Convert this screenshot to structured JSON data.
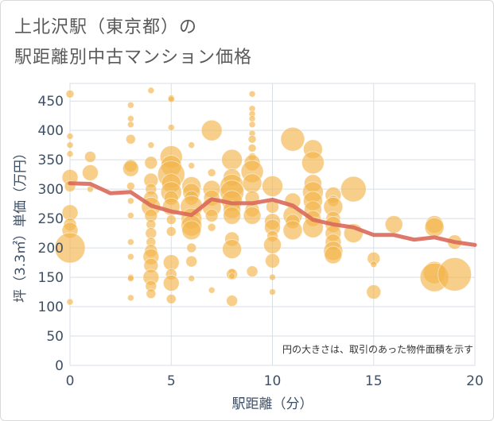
{
  "title_line1": "上北沢駅（東京都）の",
  "title_line2": "駅距離別中古マンション価格",
  "chart_data": {
    "type": "scatter",
    "xlabel": "駅距離（分）",
    "ylabel": "坪（3.3㎡）単価（万円）",
    "xlim": [
      0,
      20
    ],
    "ylim": [
      0,
      480
    ],
    "xticks": [
      0,
      5,
      10,
      15,
      20
    ],
    "yticks": [
      0,
      50,
      100,
      150,
      200,
      250,
      300,
      350,
      400,
      450
    ],
    "annotation": "円の大きさは、取引のあった物件面積を示す",
    "grid": true,
    "colors": {
      "bubble": "#f2b54c",
      "line": "#d9695a",
      "text": "#3d4f66",
      "grid": "#d7dfe8"
    },
    "trend": {
      "x": [
        0,
        1,
        2,
        3,
        4,
        5,
        6,
        7,
        8,
        9,
        10,
        11,
        12,
        13,
        14,
        15,
        16,
        17,
        18,
        19,
        20
      ],
      "y": [
        310,
        309,
        293,
        295,
        272,
        262,
        256,
        283,
        276,
        276,
        282,
        272,
        248,
        240,
        235,
        222,
        222,
        214,
        218,
        210,
        205
      ]
    },
    "points": [
      {
        "x": 0,
        "y": 462,
        "s": 5
      },
      {
        "x": 0,
        "y": 390,
        "s": 4
      },
      {
        "x": 0,
        "y": 375,
        "s": 4
      },
      {
        "x": 0,
        "y": 360,
        "s": 4
      },
      {
        "x": 0,
        "y": 320,
        "s": 10
      },
      {
        "x": 0,
        "y": 305,
        "s": 7
      },
      {
        "x": 0,
        "y": 260,
        "s": 10
      },
      {
        "x": 0,
        "y": 240,
        "s": 8
      },
      {
        "x": 0,
        "y": 230,
        "s": 10
      },
      {
        "x": 0,
        "y": 200,
        "s": 19
      },
      {
        "x": 0,
        "y": 108,
        "s": 4
      },
      {
        "x": 1,
        "y": 355,
        "s": 7
      },
      {
        "x": 1,
        "y": 328,
        "s": 10
      },
      {
        "x": 1,
        "y": 300,
        "s": 4
      },
      {
        "x": 3,
        "y": 443,
        "s": 4
      },
      {
        "x": 3,
        "y": 420,
        "s": 4
      },
      {
        "x": 3,
        "y": 410,
        "s": 4
      },
      {
        "x": 3,
        "y": 385,
        "s": 6
      },
      {
        "x": 3,
        "y": 340,
        "s": 8
      },
      {
        "x": 3,
        "y": 335,
        "s": 10
      },
      {
        "x": 3,
        "y": 305,
        "s": 5
      },
      {
        "x": 3,
        "y": 280,
        "s": 4
      },
      {
        "x": 3,
        "y": 255,
        "s": 4
      },
      {
        "x": 3,
        "y": 210,
        "s": 4
      },
      {
        "x": 3,
        "y": 185,
        "s": 4
      },
      {
        "x": 3,
        "y": 150,
        "s": 4
      },
      {
        "x": 3,
        "y": 148,
        "s": 4
      },
      {
        "x": 3,
        "y": 115,
        "s": 4
      },
      {
        "x": 4,
        "y": 468,
        "s": 4
      },
      {
        "x": 4,
        "y": 375,
        "s": 4
      },
      {
        "x": 4,
        "y": 345,
        "s": 8
      },
      {
        "x": 4,
        "y": 315,
        "s": 9
      },
      {
        "x": 4,
        "y": 300,
        "s": 7
      },
      {
        "x": 4,
        "y": 285,
        "s": 9
      },
      {
        "x": 4,
        "y": 270,
        "s": 12
      },
      {
        "x": 4,
        "y": 255,
        "s": 8
      },
      {
        "x": 4,
        "y": 240,
        "s": 6
      },
      {
        "x": 4,
        "y": 225,
        "s": 7
      },
      {
        "x": 4,
        "y": 210,
        "s": 6
      },
      {
        "x": 4,
        "y": 195,
        "s": 8
      },
      {
        "x": 4,
        "y": 185,
        "s": 10
      },
      {
        "x": 4,
        "y": 170,
        "s": 9
      },
      {
        "x": 4,
        "y": 150,
        "s": 10
      },
      {
        "x": 4,
        "y": 135,
        "s": 7
      },
      {
        "x": 4,
        "y": 122,
        "s": 6
      },
      {
        "x": 5,
        "y": 455,
        "s": 4
      },
      {
        "x": 5,
        "y": 453,
        "s": 4
      },
      {
        "x": 5,
        "y": 405,
        "s": 4
      },
      {
        "x": 5,
        "y": 355,
        "s": 14
      },
      {
        "x": 5,
        "y": 340,
        "s": 13
      },
      {
        "x": 5,
        "y": 325,
        "s": 17
      },
      {
        "x": 5,
        "y": 310,
        "s": 12
      },
      {
        "x": 5,
        "y": 295,
        "s": 13
      },
      {
        "x": 5,
        "y": 285,
        "s": 9
      },
      {
        "x": 5,
        "y": 270,
        "s": 11
      },
      {
        "x": 5,
        "y": 248,
        "s": 6
      },
      {
        "x": 5,
        "y": 228,
        "s": 6
      },
      {
        "x": 5,
        "y": 175,
        "s": 10
      },
      {
        "x": 5,
        "y": 155,
        "s": 7
      },
      {
        "x": 5,
        "y": 140,
        "s": 10
      },
      {
        "x": 5,
        "y": 113,
        "s": 6
      },
      {
        "x": 6,
        "y": 375,
        "s": 4
      },
      {
        "x": 6,
        "y": 340,
        "s": 4
      },
      {
        "x": 6,
        "y": 305,
        "s": 12
      },
      {
        "x": 6,
        "y": 295,
        "s": 11
      },
      {
        "x": 6,
        "y": 285,
        "s": 9
      },
      {
        "x": 6,
        "y": 270,
        "s": 14
      },
      {
        "x": 6,
        "y": 250,
        "s": 13
      },
      {
        "x": 6,
        "y": 238,
        "s": 13
      },
      {
        "x": 6,
        "y": 230,
        "s": 12
      },
      {
        "x": 6,
        "y": 200,
        "s": 6
      },
      {
        "x": 6,
        "y": 177,
        "s": 7
      },
      {
        "x": 6,
        "y": 148,
        "s": 4
      },
      {
        "x": 7,
        "y": 400,
        "s": 13
      },
      {
        "x": 7,
        "y": 328,
        "s": 5
      },
      {
        "x": 7,
        "y": 300,
        "s": 11
      },
      {
        "x": 7,
        "y": 285,
        "s": 10
      },
      {
        "x": 7,
        "y": 270,
        "s": 12
      },
      {
        "x": 7,
        "y": 255,
        "s": 8
      },
      {
        "x": 7,
        "y": 235,
        "s": 5
      },
      {
        "x": 7,
        "y": 128,
        "s": 4
      },
      {
        "x": 8,
        "y": 350,
        "s": 13
      },
      {
        "x": 8,
        "y": 320,
        "s": 11
      },
      {
        "x": 8,
        "y": 305,
        "s": 15
      },
      {
        "x": 8,
        "y": 295,
        "s": 15
      },
      {
        "x": 8,
        "y": 280,
        "s": 13
      },
      {
        "x": 8,
        "y": 265,
        "s": 11
      },
      {
        "x": 8,
        "y": 255,
        "s": 11
      },
      {
        "x": 8,
        "y": 215,
        "s": 9
      },
      {
        "x": 8,
        "y": 198,
        "s": 12
      },
      {
        "x": 8,
        "y": 160,
        "s": 4
      },
      {
        "x": 8,
        "y": 155,
        "s": 7
      },
      {
        "x": 8,
        "y": 152,
        "s": 4
      },
      {
        "x": 8,
        "y": 110,
        "s": 7
      },
      {
        "x": 9,
        "y": 462,
        "s": 4
      },
      {
        "x": 9,
        "y": 437,
        "s": 4
      },
      {
        "x": 9,
        "y": 428,
        "s": 4
      },
      {
        "x": 9,
        "y": 420,
        "s": 4
      },
      {
        "x": 9,
        "y": 410,
        "s": 4
      },
      {
        "x": 9,
        "y": 395,
        "s": 4
      },
      {
        "x": 9,
        "y": 385,
        "s": 5
      },
      {
        "x": 9,
        "y": 370,
        "s": 5
      },
      {
        "x": 9,
        "y": 355,
        "s": 5
      },
      {
        "x": 9,
        "y": 345,
        "s": 10
      },
      {
        "x": 9,
        "y": 330,
        "s": 14
      },
      {
        "x": 9,
        "y": 310,
        "s": 12
      },
      {
        "x": 9,
        "y": 285,
        "s": 9
      },
      {
        "x": 9,
        "y": 265,
        "s": 9
      },
      {
        "x": 9,
        "y": 255,
        "s": 11
      },
      {
        "x": 9,
        "y": 160,
        "s": 7
      },
      {
        "x": 10,
        "y": 305,
        "s": 13
      },
      {
        "x": 10,
        "y": 270,
        "s": 8
      },
      {
        "x": 10,
        "y": 245,
        "s": 10
      },
      {
        "x": 10,
        "y": 235,
        "s": 10
      },
      {
        "x": 10,
        "y": 220,
        "s": 7
      },
      {
        "x": 10,
        "y": 205,
        "s": 11
      },
      {
        "x": 10,
        "y": 178,
        "s": 9
      },
      {
        "x": 10,
        "y": 150,
        "s": 4
      },
      {
        "x": 10,
        "y": 125,
        "s": 4
      },
      {
        "x": 11,
        "y": 385,
        "s": 15
      },
      {
        "x": 11,
        "y": 280,
        "s": 10
      },
      {
        "x": 11,
        "y": 255,
        "s": 12
      },
      {
        "x": 11,
        "y": 245,
        "s": 9
      },
      {
        "x": 11,
        "y": 230,
        "s": 12
      },
      {
        "x": 12,
        "y": 368,
        "s": 12
      },
      {
        "x": 12,
        "y": 345,
        "s": 14
      },
      {
        "x": 12,
        "y": 310,
        "s": 11
      },
      {
        "x": 12,
        "y": 295,
        "s": 13
      },
      {
        "x": 12,
        "y": 280,
        "s": 12
      },
      {
        "x": 12,
        "y": 265,
        "s": 11
      },
      {
        "x": 12,
        "y": 250,
        "s": 10
      },
      {
        "x": 12,
        "y": 235,
        "s": 13
      },
      {
        "x": 13,
        "y": 290,
        "s": 10
      },
      {
        "x": 13,
        "y": 280,
        "s": 7
      },
      {
        "x": 13,
        "y": 270,
        "s": 12
      },
      {
        "x": 13,
        "y": 250,
        "s": 9
      },
      {
        "x": 13,
        "y": 240,
        "s": 10
      },
      {
        "x": 13,
        "y": 225,
        "s": 10
      },
      {
        "x": 13,
        "y": 210,
        "s": 10
      },
      {
        "x": 13,
        "y": 195,
        "s": 12
      },
      {
        "x": 13,
        "y": 188,
        "s": 11
      },
      {
        "x": 14,
        "y": 300,
        "s": 16
      },
      {
        "x": 14,
        "y": 225,
        "s": 12
      },
      {
        "x": 15,
        "y": 182,
        "s": 8
      },
      {
        "x": 15,
        "y": 172,
        "s": 4
      },
      {
        "x": 15,
        "y": 125,
        "s": 9
      },
      {
        "x": 16,
        "y": 240,
        "s": 11
      },
      {
        "x": 18,
        "y": 240,
        "s": 11
      },
      {
        "x": 18,
        "y": 235,
        "s": 12
      },
      {
        "x": 18,
        "y": 158,
        "s": 14
      },
      {
        "x": 18,
        "y": 150,
        "s": 18
      },
      {
        "x": 19,
        "y": 210,
        "s": 9
      },
      {
        "x": 19,
        "y": 155,
        "s": 21
      }
    ]
  }
}
